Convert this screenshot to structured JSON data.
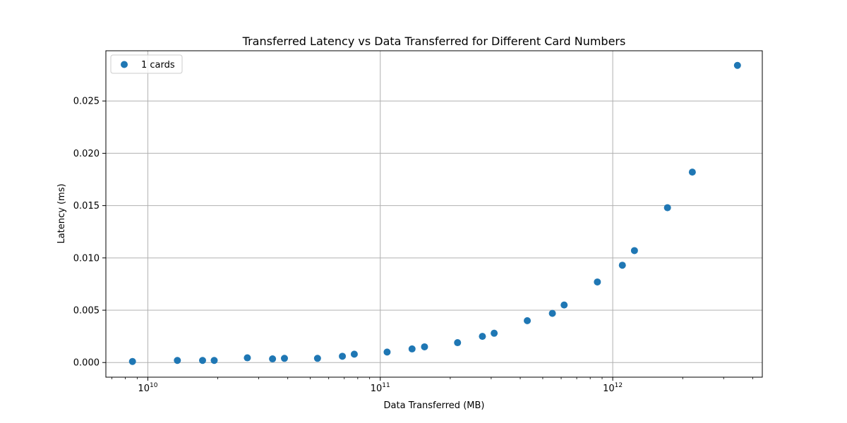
{
  "chart_data": {
    "type": "scatter",
    "title": "Transferred Latency vs Data Transferred for Different Card Numbers",
    "xlabel": "Data Transferred (MB)",
    "ylabel": "Latency (ms)",
    "xscale": "log",
    "xlim": [
      6600000000.0,
      4400000000000.0
    ],
    "ylim": [
      -0.0014,
      0.0298
    ],
    "grid": true,
    "legend_position": "top-left",
    "x_ticks": [
      {
        "value": 10000000000.0,
        "base": "10",
        "exp": "10"
      },
      {
        "value": 100000000000.0,
        "base": "10",
        "exp": "11"
      },
      {
        "value": 1000000000000.0,
        "base": "10",
        "exp": "12"
      }
    ],
    "y_ticks": [
      {
        "value": 0,
        "label": "0.000"
      },
      {
        "value": 0.005,
        "label": "0.005"
      },
      {
        "value": 0.01,
        "label": "0.010"
      },
      {
        "value": 0.015,
        "label": "0.015"
      },
      {
        "value": 0.02,
        "label": "0.020"
      },
      {
        "value": 0.025,
        "label": "0.025"
      }
    ],
    "series": [
      {
        "name": "1 cards",
        "color": "#1f77b4",
        "x": [
          8590000000.0,
          13400000000.0,
          17200000000.0,
          19300000000.0,
          26800000000.0,
          34400000000.0,
          38700000000.0,
          53700000000.0,
          68700000000.0,
          77300000000.0,
          107000000000.0,
          137000000000.0,
          155000000000.0,
          215000000000.0,
          275000000000.0,
          309000000000.0,
          429000000000.0,
          550000000000.0,
          618000000000.0,
          859000000000.0,
          1100000000000.0,
          1240000000000.0,
          1720000000000.0,
          2200000000000.0,
          3440000000000.0
        ],
        "y": [
          0.0001,
          0.0002,
          0.0002,
          0.0002,
          0.00045,
          0.00035,
          0.0004,
          0.0004,
          0.0006,
          0.0008,
          0.001,
          0.0013,
          0.0015,
          0.0019,
          0.0025,
          0.0028,
          0.004,
          0.0047,
          0.0055,
          0.0077,
          0.0093,
          0.0107,
          0.0148,
          0.0182,
          0.0284
        ]
      }
    ]
  }
}
